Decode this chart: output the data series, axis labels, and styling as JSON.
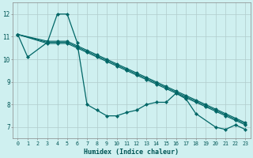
{
  "xlabel": "Humidex (Indice chaleur)",
  "ylabel": "",
  "xlim": [
    -0.5,
    23.5
  ],
  "ylim": [
    6.5,
    12.5
  ],
  "yticks": [
    7,
    8,
    9,
    10,
    11,
    12
  ],
  "xticks": [
    0,
    1,
    2,
    3,
    4,
    5,
    6,
    7,
    8,
    9,
    10,
    11,
    12,
    13,
    14,
    15,
    16,
    17,
    18,
    19,
    20,
    21,
    22,
    23
  ],
  "bg_color": "#cff0f0",
  "grid_color": "#b0cccc",
  "line_color": "#006666",
  "line1_x": [
    0,
    1,
    3,
    4,
    5,
    6,
    7,
    8,
    9,
    10,
    11,
    12,
    13,
    14,
    15,
    16,
    17,
    18,
    20,
    21,
    22,
    23
  ],
  "line1_y": [
    11.1,
    10.1,
    10.75,
    12.0,
    12.0,
    10.75,
    8.0,
    7.75,
    7.5,
    7.5,
    7.65,
    7.75,
    8.0,
    8.1,
    8.1,
    8.5,
    8.25,
    7.6,
    7.0,
    6.9,
    7.1,
    6.9
  ],
  "line2_x": [
    0,
    3,
    4,
    5,
    6,
    7,
    8,
    9,
    10,
    11,
    12,
    13,
    14,
    15,
    16,
    17,
    18,
    19,
    20,
    21,
    22,
    23
  ],
  "line2_y": [
    11.1,
    10.7,
    10.7,
    10.7,
    10.5,
    10.3,
    10.1,
    9.9,
    9.7,
    9.5,
    9.3,
    9.1,
    8.9,
    8.7,
    8.5,
    8.3,
    8.1,
    7.9,
    7.7,
    7.5,
    7.3,
    7.1
  ],
  "line3_x": [
    0,
    3,
    4,
    5,
    6,
    7,
    8,
    9,
    10,
    11,
    12,
    13,
    14,
    15,
    16,
    17,
    18,
    19,
    20,
    21,
    22,
    23
  ],
  "line3_y": [
    11.1,
    10.8,
    10.8,
    10.8,
    10.6,
    10.4,
    10.2,
    10.0,
    9.8,
    9.6,
    9.4,
    9.2,
    9.0,
    8.8,
    8.6,
    8.4,
    8.2,
    8.0,
    7.8,
    7.6,
    7.4,
    7.2
  ],
  "line4_x": [
    0,
    3,
    4,
    5,
    6,
    7,
    8,
    9,
    10,
    11,
    12,
    13,
    14,
    15,
    16,
    17,
    18,
    19,
    20,
    21,
    22,
    23
  ],
  "line4_y": [
    11.1,
    10.75,
    10.75,
    10.75,
    10.55,
    10.35,
    10.15,
    9.95,
    9.75,
    9.55,
    9.35,
    9.15,
    8.95,
    8.75,
    8.55,
    8.35,
    8.15,
    7.95,
    7.75,
    7.55,
    7.35,
    7.15
  ]
}
